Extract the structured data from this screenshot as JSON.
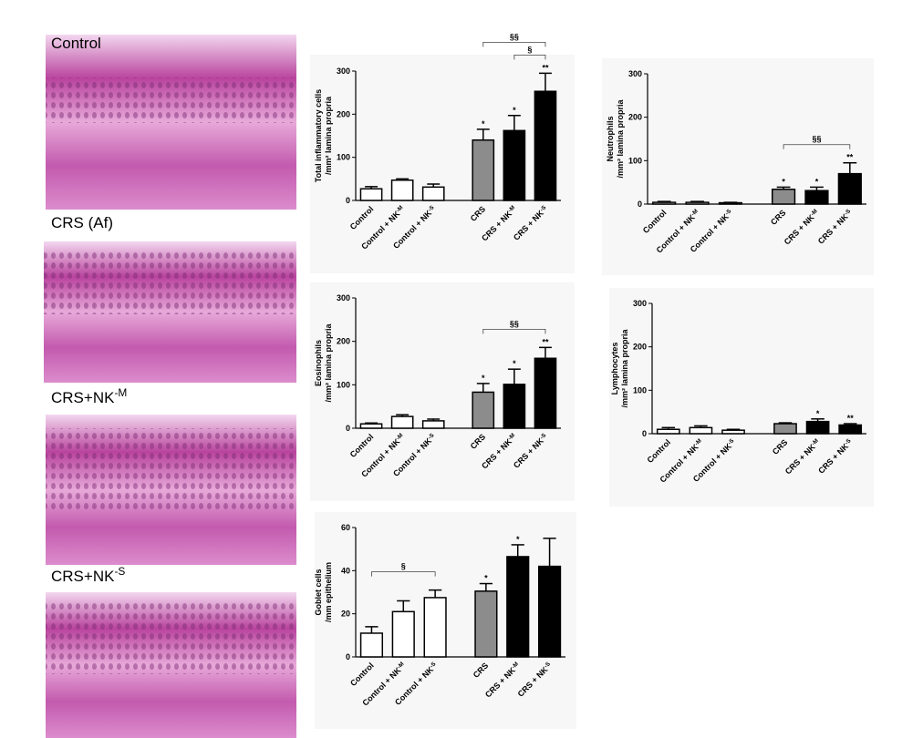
{
  "panels": [
    {
      "label": "Control"
    },
    {
      "label": "CRS (Af)"
    },
    {
      "label": "CRS+NK-M"
    },
    {
      "label": "CRS+NK-S"
    }
  ],
  "chart_data": [
    {
      "type": "bar",
      "ylabel": [
        "Total inflammatory cells",
        "/mm² lamina propria"
      ],
      "categories": [
        "Control",
        "Control + NK-M",
        "Control + NK-S",
        "CRS",
        "CRS + NK-M",
        "CRS + NK-S"
      ],
      "values": [
        27,
        47,
        31,
        140,
        162,
        253
      ],
      "errors": [
        5,
        3,
        7,
        25,
        35,
        42
      ],
      "colors": [
        "#ffffff",
        "#ffffff",
        "#ffffff",
        "#8c8c8c",
        "#000000",
        "#000000"
      ],
      "ylim": [
        0,
        300
      ],
      "yticks": [
        0,
        100,
        200,
        300
      ],
      "stars": [
        {
          "index": 3,
          "text": "*"
        },
        {
          "index": 4,
          "text": "*"
        },
        {
          "index": 5,
          "text": "**"
        }
      ],
      "brackets": [
        {
          "from": 3,
          "to": 5,
          "text": "§§"
        },
        {
          "from": 4,
          "to": 5,
          "text": "§"
        }
      ]
    },
    {
      "type": "bar",
      "ylabel": [
        "Neutrophils",
        "/mm² lamina propria"
      ],
      "categories": [
        "Control",
        "Control + NK-M",
        "Control + NK-S",
        "CRS",
        "CRS + NK-M",
        "CRS + NK-S"
      ],
      "values": [
        4,
        4,
        3,
        34,
        31,
        70
      ],
      "errors": [
        2,
        2,
        1,
        5,
        8,
        25
      ],
      "colors": [
        "#ffffff",
        "#ffffff",
        "#ffffff",
        "#8c8c8c",
        "#000000",
        "#000000"
      ],
      "ylim": [
        0,
        300
      ],
      "yticks": [
        0,
        100,
        200,
        300
      ],
      "stars": [
        {
          "index": 3,
          "text": "*"
        },
        {
          "index": 4,
          "text": "*"
        },
        {
          "index": 5,
          "text": "**"
        }
      ],
      "brackets": [
        {
          "from": 3,
          "to": 5,
          "text": "§§"
        }
      ]
    },
    {
      "type": "bar",
      "ylabel": [
        "Eosinophils",
        "/mm² lamina propria"
      ],
      "categories": [
        "Control",
        "Control + NK-M",
        "Control + NK-S",
        "CRS",
        "CRS + NK-M",
        "CRS + NK-S"
      ],
      "values": [
        10,
        27,
        17,
        83,
        101,
        161
      ],
      "errors": [
        2,
        4,
        4,
        20,
        35,
        25
      ],
      "colors": [
        "#ffffff",
        "#ffffff",
        "#ffffff",
        "#8c8c8c",
        "#000000",
        "#000000"
      ],
      "ylim": [
        0,
        300
      ],
      "yticks": [
        0,
        100,
        200,
        300
      ],
      "stars": [
        {
          "index": 3,
          "text": "*"
        },
        {
          "index": 4,
          "text": "*"
        },
        {
          "index": 5,
          "text": "**"
        }
      ],
      "brackets": [
        {
          "from": 3,
          "to": 5,
          "text": "§§"
        }
      ]
    },
    {
      "type": "bar",
      "ylabel": [
        "Lymphocytes",
        "/mm² lamina propria"
      ],
      "categories": [
        "Control",
        "Control + NK-M",
        "Control + NK-S",
        "CRS",
        "CRS + NK-M",
        "CRS + NK-S"
      ],
      "values": [
        10,
        14,
        8,
        23,
        28,
        20
      ],
      "errors": [
        4,
        4,
        2,
        2,
        6,
        3
      ],
      "colors": [
        "#ffffff",
        "#ffffff",
        "#ffffff",
        "#8c8c8c",
        "#000000",
        "#000000"
      ],
      "ylim": [
        0,
        300
      ],
      "yticks": [
        0,
        100,
        200,
        300
      ],
      "stars": [
        {
          "index": 4,
          "text": "*"
        },
        {
          "index": 5,
          "text": "**"
        }
      ],
      "brackets": []
    },
    {
      "type": "bar",
      "ylabel": [
        "Goblet cells",
        "/mm epithelium"
      ],
      "categories": [
        "Control",
        "Control + NK-M",
        "Control + NK-S",
        "CRS",
        "CRS + NK-M",
        "CRS + NK-S"
      ],
      "values": [
        11,
        21,
        27.5,
        30.5,
        46.5,
        42
      ],
      "errors": [
        3,
        5,
        3.5,
        3.5,
        5.5,
        13
      ],
      "colors": [
        "#ffffff",
        "#ffffff",
        "#ffffff",
        "#8c8c8c",
        "#000000",
        "#000000"
      ],
      "ylim": [
        0,
        60
      ],
      "yticks": [
        0,
        20,
        40,
        60
      ],
      "stars": [
        {
          "index": 3,
          "text": "*"
        },
        {
          "index": 4,
          "text": "*"
        }
      ],
      "brackets": [
        {
          "from": 0,
          "to": 2,
          "text": "§"
        }
      ]
    }
  ]
}
